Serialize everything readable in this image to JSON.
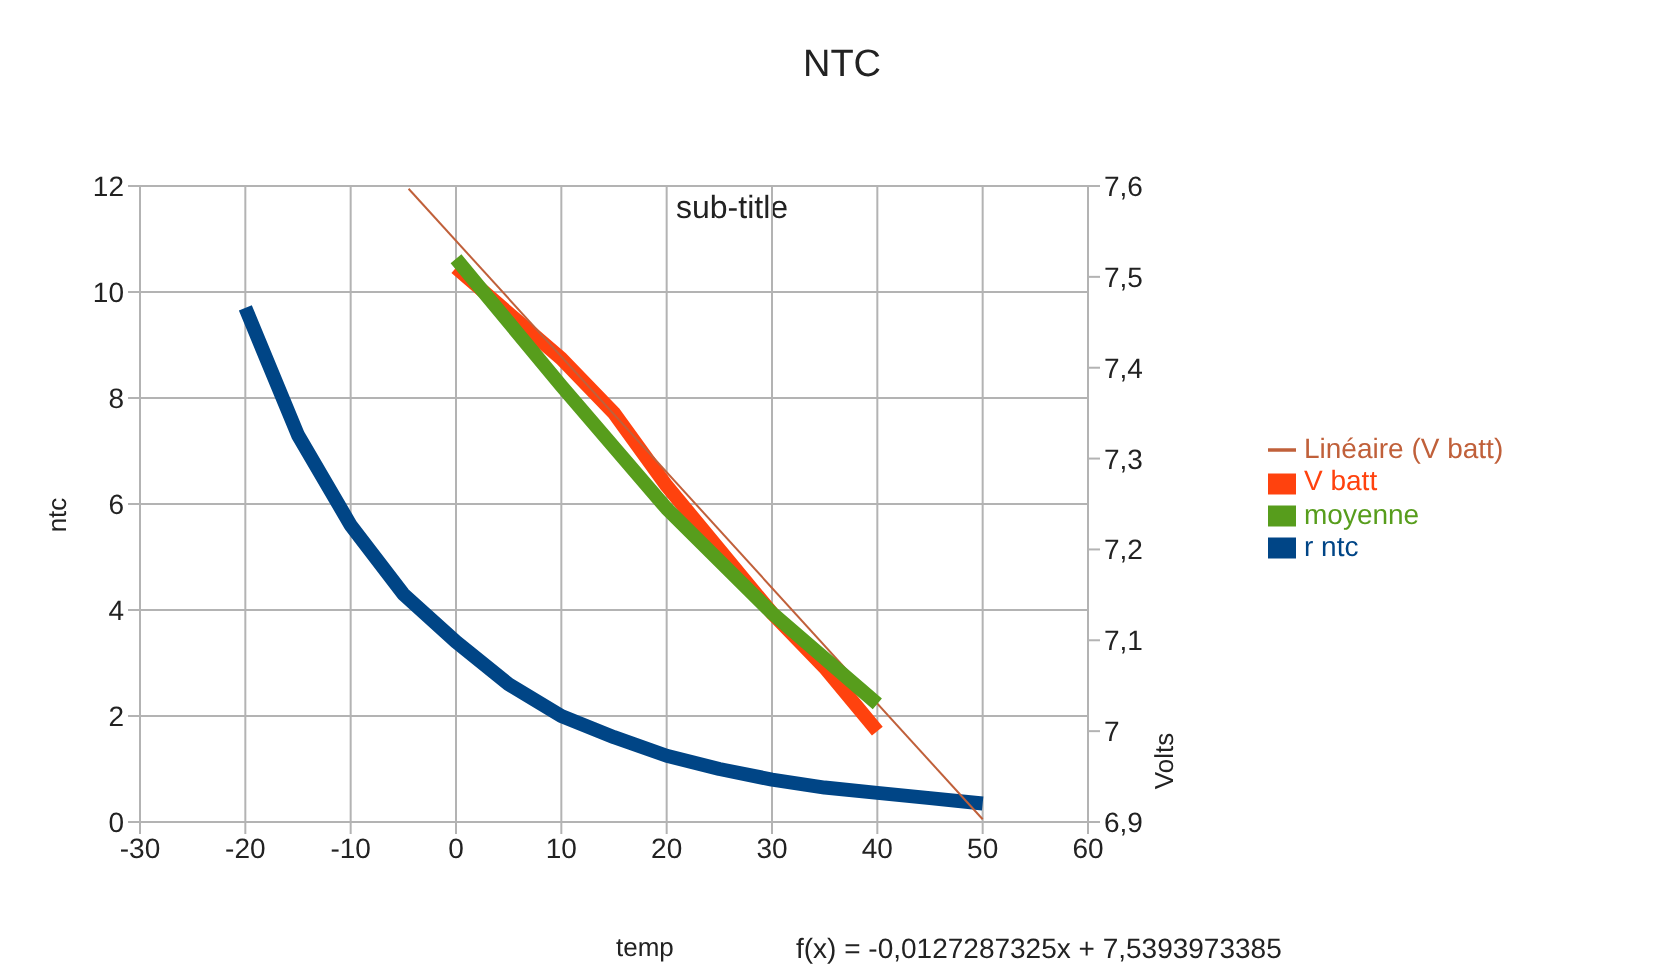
{
  "chart_data": {
    "type": "line",
    "title": "NTC",
    "subtitle": "sub-title",
    "xlabel": "temp",
    "ylabel": "ntc",
    "y2label": "Volts",
    "annotations": [
      "f(x) = -0,0127287325x + 7,5393973385"
    ],
    "xlim": [
      -30,
      60
    ],
    "xticks": [
      -30,
      -20,
      -10,
      0,
      10,
      20,
      30,
      40,
      50,
      60
    ],
    "ylim": [
      0,
      12
    ],
    "yticks": [
      0,
      2,
      4,
      6,
      8,
      10,
      12
    ],
    "y2lim": [
      6.9,
      7.6
    ],
    "y2ticks": [
      {
        "value": 6.9,
        "label": "6,9"
      },
      {
        "value": 7,
        "label": "7"
      },
      {
        "value": 7.1,
        "label": "7,1"
      },
      {
        "value": 7.2,
        "label": "7,2"
      },
      {
        "value": 7.3,
        "label": "7,3"
      },
      {
        "value": 7.4,
        "label": "7,4"
      },
      {
        "value": 7.5,
        "label": "7,5"
      },
      {
        "value": 7.6,
        "label": "7,6"
      }
    ],
    "grid": true,
    "legend": "right",
    "marker": "none",
    "series": [
      {
        "name": "r ntc",
        "color": "#004586",
        "x": [
          -20,
          -15,
          -10,
          -5,
          0,
          5,
          10,
          15,
          20,
          25,
          30,
          35,
          40,
          45,
          50
        ],
        "values": [
          9.7,
          7.3,
          5.6,
          4.3,
          3.4,
          2.6,
          2.0,
          1.6,
          1.25,
          1.0,
          0.8,
          0.65,
          0.55,
          0.45,
          0.35
        ]
      },
      {
        "name": "V batt",
        "color": "#ff420e",
        "axis": "y2",
        "x": [
          0,
          5,
          10,
          15,
          20,
          25,
          30,
          35,
          40
        ],
        "values": [
          7.51,
          7.46,
          7.41,
          7.35,
          7.27,
          7.2,
          7.13,
          7.07,
          7.0
        ]
      },
      {
        "name": "Linéaire (V batt)",
        "color": "#c0603a",
        "axis": "y2",
        "x": [
          -4.5,
          50
        ],
        "values": [
          7.597,
          6.903
        ]
      },
      {
        "name": "moyenne",
        "color": "#579d1c",
        "axis": "y2",
        "x": [
          0,
          10,
          20,
          30,
          40
        ],
        "values": [
          7.52,
          7.38,
          7.245,
          7.13,
          7.03
        ]
      }
    ]
  }
}
